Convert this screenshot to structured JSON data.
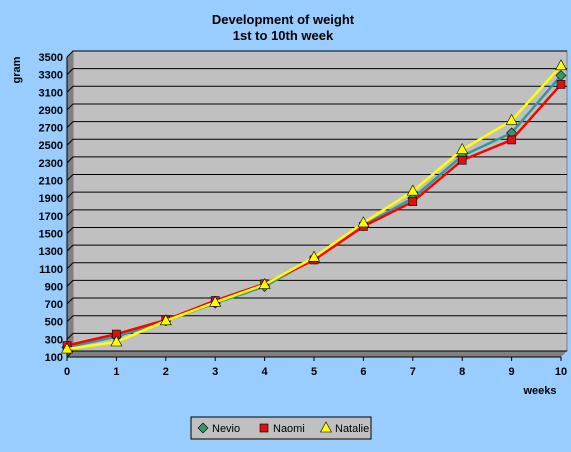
{
  "chart_data": {
    "type": "line",
    "title": "Development of weight",
    "subtitle": "1st to 10th week",
    "xlabel": "weeks",
    "ylabel": "gram",
    "x": [
      0,
      1,
      2,
      3,
      4,
      5,
      6,
      7,
      8,
      9,
      10
    ],
    "ylim": [
      100,
      3500
    ],
    "yticks": [
      100,
      300,
      500,
      700,
      900,
      1100,
      1300,
      1500,
      1700,
      1900,
      2100,
      2300,
      2500,
      2700,
      2900,
      3100,
      3300,
      3500
    ],
    "grid": true,
    "legend_position": "bottom",
    "series": [
      {
        "name": "Nevio",
        "values": [
          210,
          330,
          510,
          710,
          900,
          1210,
          1590,
          1900,
          2380,
          2640,
          3290
        ],
        "line_color": "#339999",
        "marker": "diamond",
        "marker_color": "#339966"
      },
      {
        "name": "Naomi",
        "values": [
          230,
          360,
          520,
          740,
          930,
          1200,
          1580,
          1860,
          2330,
          2560,
          3190
        ],
        "line_color": "#ff0000",
        "marker": "square",
        "marker_color": "#dd1111"
      },
      {
        "name": "Natalie",
        "values": [
          190,
          270,
          510,
          720,
          920,
          1230,
          1620,
          1980,
          2450,
          2780,
          3400
        ],
        "line_color": "#ffff00",
        "marker": "triangle",
        "marker_color": "#ffff00"
      }
    ],
    "colors": {
      "background": "#99ccff",
      "plot_area": "#c0c0c0"
    }
  }
}
